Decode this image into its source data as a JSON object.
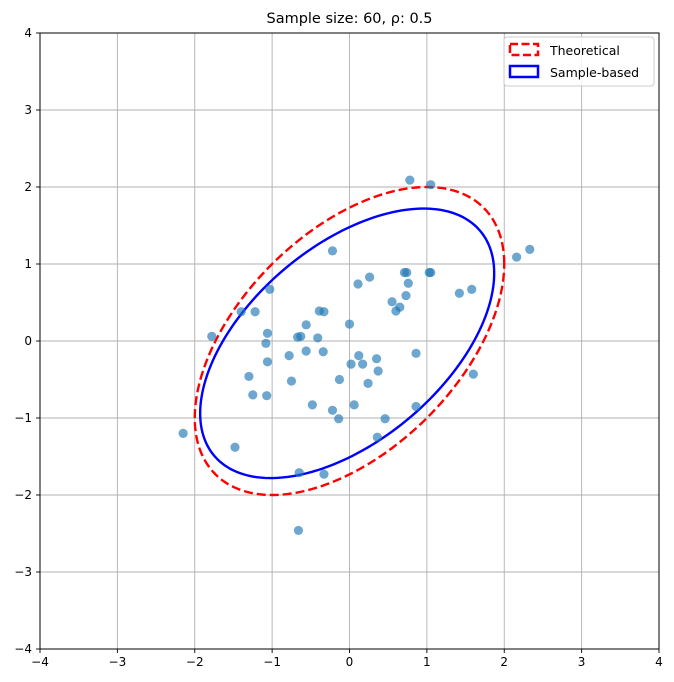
{
  "chart_data": {
    "type": "scatter",
    "title": "Sample size: 60, ρ: 0.5",
    "xlabel": "",
    "ylabel": "",
    "xlim": [
      -4,
      4
    ],
    "ylim": [
      -4,
      4
    ],
    "x_ticks": [
      -4,
      -3,
      -2,
      -1,
      0,
      1,
      2,
      3,
      4
    ],
    "y_ticks": [
      -4,
      -3,
      -2,
      -1,
      0,
      1,
      2,
      3,
      4
    ],
    "grid": true,
    "legend": {
      "position": "top-right",
      "entries": [
        "Theoretical",
        "Sample-based"
      ]
    },
    "colors": {
      "points": "#1f77b4",
      "theoretical": "#ff0000",
      "sample": "#0000ff",
      "grid": "#b0b0b0"
    },
    "points": [
      [
        0.78,
        2.09
      ],
      [
        1.05,
        2.03
      ],
      [
        2.16,
        1.09
      ],
      [
        2.33,
        1.19
      ],
      [
        -0.22,
        1.17
      ],
      [
        0.71,
        0.89
      ],
      [
        0.74,
        0.89
      ],
      [
        1.03,
        0.89
      ],
      [
        1.05,
        0.89
      ],
      [
        0.26,
        0.83
      ],
      [
        0.11,
        0.74
      ],
      [
        0.76,
        0.75
      ],
      [
        1.42,
        0.62
      ],
      [
        1.58,
        0.67
      ],
      [
        -1.03,
        0.67
      ],
      [
        0.73,
        0.59
      ],
      [
        0.55,
        0.51
      ],
      [
        0.65,
        0.44
      ],
      [
        0.6,
        0.39
      ],
      [
        -1.4,
        0.38
      ],
      [
        -1.22,
        0.38
      ],
      [
        -0.39,
        0.39
      ],
      [
        -0.33,
        0.38
      ],
      [
        -0.56,
        0.21
      ],
      [
        0.0,
        0.22
      ],
      [
        -1.06,
        0.1
      ],
      [
        -1.78,
        0.06
      ],
      [
        -0.67,
        0.05
      ],
      [
        -0.63,
        0.06
      ],
      [
        -0.41,
        0.04
      ],
      [
        -1.08,
        -0.03
      ],
      [
        -0.56,
        -0.13
      ],
      [
        -0.34,
        -0.14
      ],
      [
        0.86,
        -0.16
      ],
      [
        -0.78,
        -0.19
      ],
      [
        0.12,
        -0.19
      ],
      [
        0.35,
        -0.23
      ],
      [
        -1.06,
        -0.27
      ],
      [
        0.02,
        -0.3
      ],
      [
        0.17,
        -0.3
      ],
      [
        0.37,
        -0.39
      ],
      [
        -1.3,
        -0.46
      ],
      [
        -0.13,
        -0.5
      ],
      [
        -0.75,
        -0.52
      ],
      [
        0.24,
        -0.55
      ],
      [
        1.6,
        -0.43
      ],
      [
        -1.25,
        -0.7
      ],
      [
        -1.07,
        -0.71
      ],
      [
        -0.48,
        -0.83
      ],
      [
        0.06,
        -0.83
      ],
      [
        0.86,
        -0.85
      ],
      [
        -0.22,
        -0.9
      ],
      [
        -0.14,
        -1.01
      ],
      [
        0.46,
        -1.01
      ],
      [
        -2.15,
        -1.2
      ],
      [
        0.36,
        -1.25
      ],
      [
        -1.48,
        -1.38
      ],
      [
        -0.33,
        -1.73
      ],
      [
        -0.65,
        -1.71
      ],
      [
        -0.66,
        -2.46
      ]
    ],
    "ellipses": [
      {
        "name": "Theoretical",
        "cx": 0,
        "cy": 0,
        "sx": 2,
        "sy": 2,
        "rho": 0.5,
        "style": "dashed"
      },
      {
        "name": "Sample-based",
        "cx": -0.03,
        "cy": -0.03,
        "sx": 1.9,
        "sy": 1.75,
        "rho": 0.52,
        "style": "solid"
      }
    ]
  }
}
